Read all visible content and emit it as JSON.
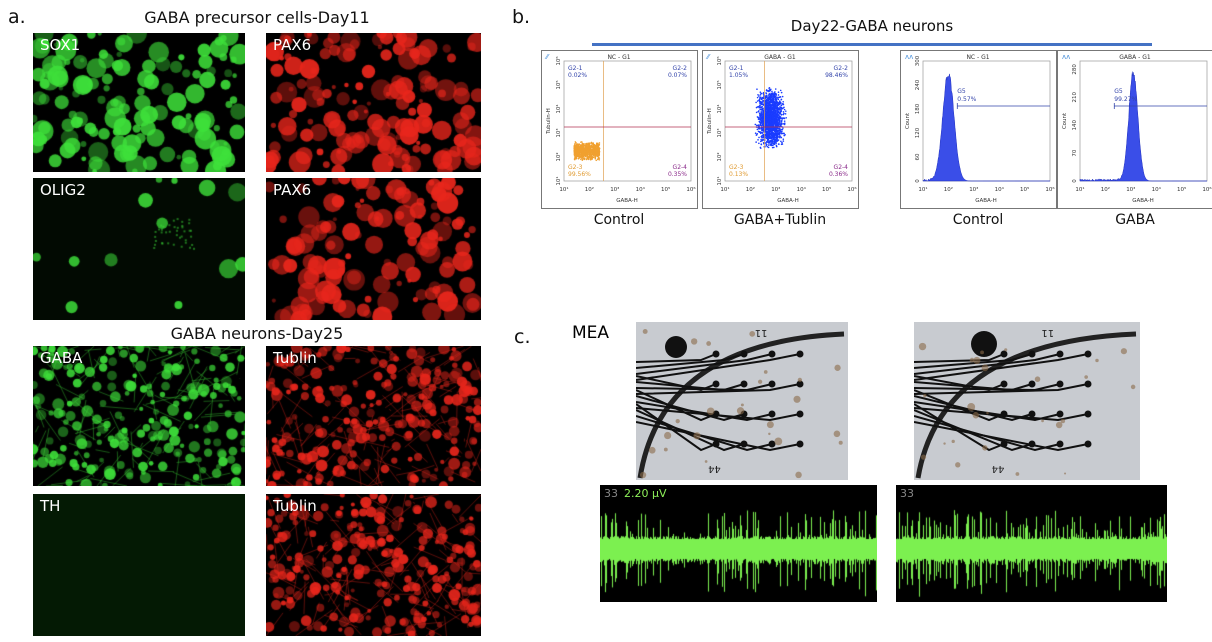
{
  "panel_a": {
    "letter": "a.",
    "title_top": "GABA precursor cells-Day11",
    "title_bottom": "GABA neurons-Day25",
    "images": [
      {
        "label": "SOX1",
        "color": "#3ee03a"
      },
      {
        "label": "PAX6",
        "color": "#e8261c"
      },
      {
        "label": "OLIG2",
        "color": "#3ee03a"
      },
      {
        "label": "PAX6",
        "color": "#e8261c"
      },
      {
        "label": "GABA",
        "color": "#3ee03a"
      },
      {
        "label": "Tublin",
        "color": "#e8261c"
      },
      {
        "label": "TH",
        "color": "#3ee03a"
      },
      {
        "label": "Tublin",
        "color": "#e8261c"
      }
    ]
  },
  "panel_b": {
    "letter": "b.",
    "title": "Day22-GABA neurons",
    "accent": "#4472c4",
    "x_ticks": [
      "10¹",
      "10²",
      "10³",
      "10⁴",
      "10⁵",
      "10⁶"
    ],
    "scatter_plots": [
      {
        "title": "NC - G1",
        "xlabel": "GABA-H",
        "ylabel": "Tubulin-H",
        "caption": "Control",
        "q1": [
          "G2-1",
          "0.02%"
        ],
        "q2": [
          "G2-2",
          "0.07%"
        ],
        "q3": [
          "G2-3",
          "99.56%"
        ],
        "q4": [
          "G2-4",
          "0.35%"
        ]
      },
      {
        "title": "GABA - G1",
        "xlabel": "GABA-H",
        "ylabel": "Tubulin-H",
        "caption": "GABA+Tublin",
        "q1": [
          "G2-1",
          "1.05%"
        ],
        "q2": [
          "G2-2",
          "98.46%"
        ],
        "q3": [
          "G2-3",
          "0.13%"
        ],
        "q4": [
          "G2-4",
          "0.36%"
        ]
      }
    ],
    "histograms": [
      {
        "title": "NC - G1",
        "xlabel": "GABA-H",
        "ylabel": "Count",
        "caption": "Control",
        "gate": "G5",
        "pct": "0.57%",
        "y_ticks": [
          "0",
          "60",
          "120",
          "180",
          "240",
          "300"
        ]
      },
      {
        "title": "GABA - G1",
        "xlabel": "GABA-H",
        "ylabel": "Count",
        "caption": "GABA",
        "gate": "G5",
        "pct": "99.27%",
        "y_ticks": [
          "0",
          "70",
          "140",
          "210",
          "280"
        ]
      }
    ]
  },
  "panel_c": {
    "letter": "c.",
    "label": "MEA",
    "electrode_numbers": [
      "11",
      "44"
    ],
    "traces": [
      {
        "channel": "33",
        "scale": "2.20 μV"
      },
      {
        "channel": "33",
        "scale": ""
      }
    ]
  }
}
